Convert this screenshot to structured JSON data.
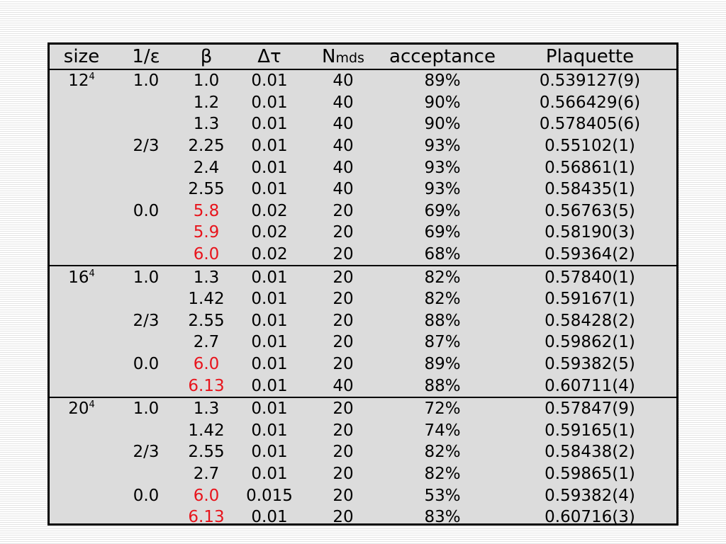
{
  "headers": {
    "size": "size",
    "inv_eps": "1/ε",
    "beta": "β",
    "dtau": "Δτ",
    "nmds_main": "N",
    "nmds_sub": "mds",
    "acceptance": "acceptance",
    "plaquette": "Plaquette"
  },
  "colors": {
    "red_beta": "#e8141c",
    "table_bg": "#dcdcdc"
  },
  "rows": [
    {
      "size": "12",
      "size_exp": "4",
      "inv_eps": "1.0",
      "beta": "1.0",
      "beta_red": false,
      "dtau": "0.01",
      "nmds": "40",
      "acceptance": "89%",
      "plaquette": "0.539127(9)"
    },
    {
      "size": "",
      "size_exp": "",
      "inv_eps": "",
      "beta": "1.2",
      "beta_red": false,
      "dtau": "0.01",
      "nmds": "40",
      "acceptance": "90%",
      "plaquette": "0.566429(6)"
    },
    {
      "size": "",
      "size_exp": "",
      "inv_eps": "",
      "beta": "1.3",
      "beta_red": false,
      "dtau": "0.01",
      "nmds": "40",
      "acceptance": "90%",
      "plaquette": "0.578405(6)"
    },
    {
      "size": "",
      "size_exp": "",
      "inv_eps": "2/3",
      "beta": "2.25",
      "beta_red": false,
      "dtau": "0.01",
      "nmds": "40",
      "acceptance": "93%",
      "plaquette": "0.55102(1)"
    },
    {
      "size": "",
      "size_exp": "",
      "inv_eps": "",
      "beta": "2.4",
      "beta_red": false,
      "dtau": "0.01",
      "nmds": "40",
      "acceptance": "93%",
      "plaquette": "0.56861(1)"
    },
    {
      "size": "",
      "size_exp": "",
      "inv_eps": "",
      "beta": "2.55",
      "beta_red": false,
      "dtau": "0.01",
      "nmds": "40",
      "acceptance": "93%",
      "plaquette": "0.58435(1)"
    },
    {
      "size": "",
      "size_exp": "",
      "inv_eps": "0.0",
      "beta": "5.8",
      "beta_red": true,
      "dtau": "0.02",
      "nmds": "20",
      "acceptance": "69%",
      "plaquette": "0.56763(5)"
    },
    {
      "size": "",
      "size_exp": "",
      "inv_eps": "",
      "beta": "5.9",
      "beta_red": true,
      "dtau": "0.02",
      "nmds": "20",
      "acceptance": "69%",
      "plaquette": "0.58190(3)"
    },
    {
      "size": "",
      "size_exp": "",
      "inv_eps": "",
      "beta": "6.0",
      "beta_red": true,
      "dtau": "0.02",
      "nmds": "20",
      "acceptance": "68%",
      "plaquette": "0.59364(2)",
      "group_end": true
    },
    {
      "size": "16",
      "size_exp": "4",
      "inv_eps": "1.0",
      "beta": "1.3",
      "beta_red": false,
      "dtau": "0.01",
      "nmds": "20",
      "acceptance": "82%",
      "plaquette": "0.57840(1)"
    },
    {
      "size": "",
      "size_exp": "",
      "inv_eps": "",
      "beta": "1.42",
      "beta_red": false,
      "dtau": "0.01",
      "nmds": "20",
      "acceptance": "82%",
      "plaquette": "0.59167(1)"
    },
    {
      "size": "",
      "size_exp": "",
      "inv_eps": "2/3",
      "beta": "2.55",
      "beta_red": false,
      "dtau": "0.01",
      "nmds": "20",
      "acceptance": "88%",
      "plaquette": "0.58428(2)"
    },
    {
      "size": "",
      "size_exp": "",
      "inv_eps": "",
      "beta": "2.7",
      "beta_red": false,
      "dtau": "0.01",
      "nmds": "20",
      "acceptance": "87%",
      "plaquette": "0.59862(1)"
    },
    {
      "size": "",
      "size_exp": "",
      "inv_eps": "0.0",
      "beta": "6.0",
      "beta_red": true,
      "dtau": "0.01",
      "nmds": "20",
      "acceptance": "89%",
      "plaquette": "0.59382(5)"
    },
    {
      "size": "",
      "size_exp": "",
      "inv_eps": "",
      "beta": "6.13",
      "beta_red": true,
      "dtau": "0.01",
      "nmds": "40",
      "acceptance": "88%",
      "plaquette": "0.60711(4)",
      "group_end": true
    },
    {
      "size": "20",
      "size_exp": "4",
      "inv_eps": "1.0",
      "beta": "1.3",
      "beta_red": false,
      "dtau": "0.01",
      "nmds": "20",
      "acceptance": "72%",
      "plaquette": "0.57847(9)"
    },
    {
      "size": "",
      "size_exp": "",
      "inv_eps": "",
      "beta": "1.42",
      "beta_red": false,
      "dtau": "0.01",
      "nmds": "20",
      "acceptance": "74%",
      "plaquette": "0.59165(1)"
    },
    {
      "size": "",
      "size_exp": "",
      "inv_eps": "2/3",
      "beta": "2.55",
      "beta_red": false,
      "dtau": "0.01",
      "nmds": "20",
      "acceptance": "82%",
      "plaquette": "0.58438(2)"
    },
    {
      "size": "",
      "size_exp": "",
      "inv_eps": "",
      "beta": "2.7",
      "beta_red": false,
      "dtau": "0.01",
      "nmds": "20",
      "acceptance": "82%",
      "plaquette": "0.59865(1)"
    },
    {
      "size": "",
      "size_exp": "",
      "inv_eps": "0.0",
      "beta": "6.0",
      "beta_red": true,
      "dtau": "0.015",
      "nmds": "20",
      "acceptance": "53%",
      "plaquette": "0.59382(4)"
    },
    {
      "size": "",
      "size_exp": "",
      "inv_eps": "",
      "beta": "6.13",
      "beta_red": true,
      "dtau": "0.01",
      "nmds": "20",
      "acceptance": "83%",
      "plaquette": "0.60716(3)"
    }
  ]
}
